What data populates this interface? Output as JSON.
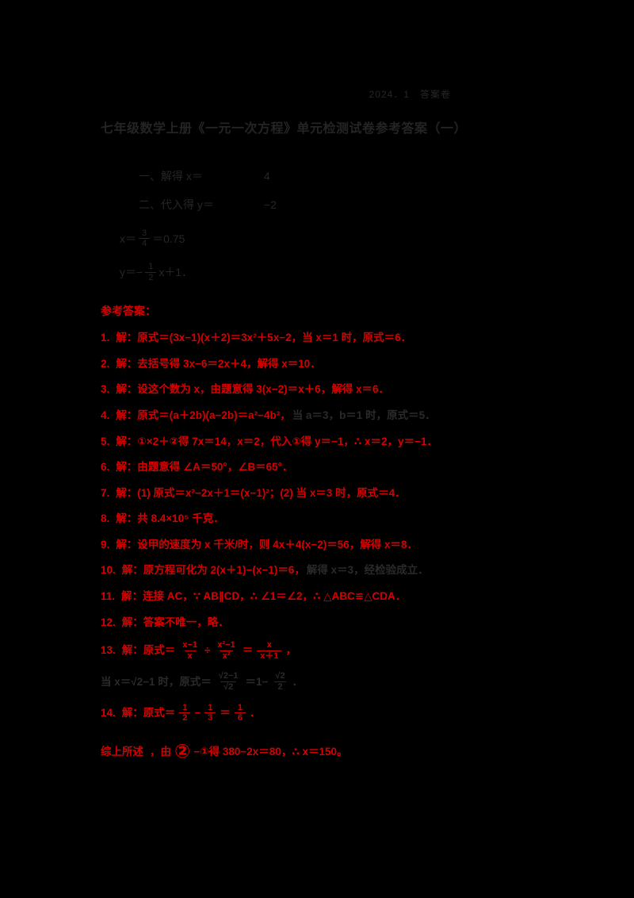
{
  "colors": {
    "background": "#000000",
    "red_text": "#d70000",
    "ink_text": "#262626"
  },
  "doc": {
    "corner": "2024．1　答案卷",
    "title": "七年级数学上册《一元一次方程》单元检测试卷参考答案（一）",
    "prelim": [
      {
        "left": "一、解得 x＝",
        "right": "4"
      },
      {
        "left": "二、代入得 y＝",
        "right": "−2"
      }
    ],
    "exprs": [
      {
        "lead": "x＝",
        "num": "3",
        "den": "4",
        "tail": "＝0.75"
      },
      {
        "lead": "y＝−",
        "num": "1",
        "den": "2",
        "tail": "x＋1．"
      }
    ],
    "answers_header": "参考答案："
  },
  "answers": [
    {
      "segments": [
        {
          "t": "num",
          "v": "1."
        },
        {
          "t": "text",
          "c": "red",
          "v": "解：原式＝(3x−1)(x＋2)＝3x²＋5x−2，当 x＝1 时，原式＝6．"
        }
      ]
    },
    {
      "segments": [
        {
          "t": "num",
          "v": "2."
        },
        {
          "t": "text",
          "c": "red",
          "v": "解：去括号得 3x−6＝2x＋4，解得 x＝10．"
        }
      ]
    },
    {
      "segments": [
        {
          "t": "num",
          "v": "3."
        },
        {
          "t": "text",
          "c": "red",
          "v": "解：设这个数为 x，由题意得 3(x−2)＝x＋6，解得 x＝6．"
        }
      ]
    },
    {
      "segments": [
        {
          "t": "num",
          "v": "4."
        },
        {
          "t": "text",
          "c": "red",
          "v": "解：原式＝(a＋2b)(a−2b)＝a²−4b²，"
        },
        {
          "t": "text",
          "c": "black",
          "v": "当 a＝3，b＝1 时，原式＝5．"
        }
      ]
    },
    {
      "segments": [
        {
          "t": "num",
          "v": "5."
        },
        {
          "t": "text",
          "c": "red",
          "v": "解：①×2＋②得 7x＝14，x＝2，代入①得 y＝−1，∴ x＝2，y＝−1．"
        }
      ]
    },
    {
      "segments": [
        {
          "t": "num",
          "v": "6."
        },
        {
          "t": "text",
          "c": "red",
          "v": "解：由题意得 ∠A＝50°，∠B＝65°．"
        }
      ]
    },
    {
      "segments": [
        {
          "t": "num",
          "v": "7."
        },
        {
          "t": "text",
          "c": "red",
          "v": "解：(1) 原式＝x²−2x＋1＝(x−1)²；(2) 当 x＝3 时，原式＝4．"
        }
      ]
    },
    {
      "segments": [
        {
          "t": "num",
          "v": "8."
        },
        {
          "t": "text",
          "c": "red",
          "v": "解：共 8.4×10⁵ 千克．"
        }
      ]
    },
    {
      "segments": [
        {
          "t": "num",
          "v": "9."
        },
        {
          "t": "text",
          "c": "red",
          "v": "解：设甲的速度为 x 千米/时，则 4x＋4(x−2)＝56，解得 x＝8．"
        }
      ]
    },
    {
      "segments": [
        {
          "t": "num",
          "v": "10."
        },
        {
          "t": "text",
          "c": "red",
          "v": "解：原方程可化为 2(x＋1)−(x−1)＝6，"
        },
        {
          "t": "text",
          "c": "black",
          "v": "解得 x＝3，经检验成立．"
        }
      ]
    },
    {
      "segments": [
        {
          "t": "num",
          "v": "11."
        },
        {
          "t": "text",
          "c": "red",
          "v": "解：连接 AC，∵ AB∥CD，∴ ∠1＝∠2，∴ △ABC≌△CDA．"
        }
      ]
    },
    {
      "segments": [
        {
          "t": "num",
          "v": "12."
        },
        {
          "t": "text",
          "c": "red",
          "v": "解：答案不唯一，略．"
        }
      ]
    },
    {
      "segments": [
        {
          "t": "num",
          "v": "13."
        },
        {
          "t": "text",
          "c": "red",
          "v": "解：原式＝"
        },
        {
          "t": "frac",
          "c": "red",
          "num": "x−1",
          "den": "x"
        },
        {
          "t": "text",
          "c": "red",
          "v": "÷"
        },
        {
          "t": "frac",
          "c": "red",
          "num": "x²−1",
          "den": "x²"
        },
        {
          "t": "text",
          "c": "red",
          "v": "＝"
        },
        {
          "t": "frac",
          "c": "red",
          "num": "x",
          "den": "x＋1"
        },
        {
          "t": "text",
          "c": "red",
          "v": "，"
        }
      ]
    },
    {
      "segments": [
        {
          "t": "text",
          "c": "black",
          "v": "当 x＝√2−1 时，原式＝"
        },
        {
          "t": "frac",
          "c": "black",
          "num": "√2−1",
          "den": "√2"
        },
        {
          "t": "text",
          "c": "black",
          "v": "＝1−"
        },
        {
          "t": "frac",
          "c": "black",
          "num": "√2",
          "den": "2"
        },
        {
          "t": "text",
          "c": "black",
          "v": "．"
        }
      ]
    },
    {
      "segments": [
        {
          "t": "num",
          "v": "14."
        },
        {
          "t": "text",
          "c": "red",
          "v": "解：原式＝"
        },
        {
          "t": "frac",
          "c": "red",
          "num": "1",
          "den": "2"
        },
        {
          "t": "text",
          "c": "red",
          "v": "−"
        },
        {
          "t": "frac",
          "c": "red",
          "num": "1",
          "den": "3"
        },
        {
          "t": "text",
          "c": "red",
          "v": "＝"
        },
        {
          "t": "frac",
          "c": "red",
          "num": "1",
          "den": "6"
        },
        {
          "t": "text",
          "c": "red",
          "v": "．"
        }
      ]
    },
    {
      "segments": [
        {
          "t": "bold",
          "v": "综上所述"
        },
        {
          "t": "text",
          "c": "red",
          "v": "，由"
        },
        {
          "t": "big",
          "c": "red",
          "v": "②"
        },
        {
          "t": "text",
          "c": "red",
          "v": "−①得 380−2x＝80，∴ x＝150。"
        }
      ]
    }
  ]
}
